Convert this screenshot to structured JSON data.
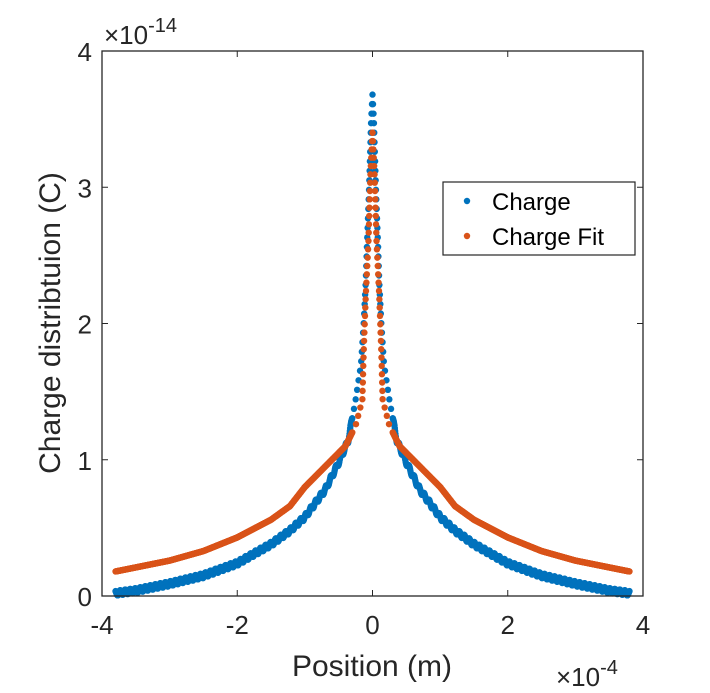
{
  "chart_data": {
    "type": "scatter",
    "title": "",
    "xlabel": "Position (m)",
    "ylabel": "Charge distribtuion (C)",
    "x_exponent_label": "×10",
    "x_exponent": "-4",
    "y_exponent_label": "×10",
    "y_exponent": "-14",
    "xlim": [
      -4,
      4
    ],
    "ylim": [
      0,
      4
    ],
    "xticks": [
      -4,
      -2,
      0,
      2,
      4
    ],
    "xtick_labels": [
      "-4",
      "-2",
      "0",
      "2",
      "4"
    ],
    "yticks": [
      0,
      1,
      2,
      3,
      4
    ],
    "ytick_labels": [
      "0",
      "1",
      "2",
      "3",
      "4"
    ],
    "grid": false,
    "legend_position": "upper-right (inside, below top)",
    "symmetric_about_zero": true,
    "series": [
      {
        "name": "Charge",
        "color": "#0072BD",
        "marker": "dot",
        "x_half": [
          0.0,
          0.02,
          0.05,
          0.08,
          0.1,
          0.13,
          0.17,
          0.25,
          0.36,
          0.5,
          0.7,
          1.0,
          1.22,
          1.5,
          2.0,
          2.5,
          3.0,
          3.5,
          3.8
        ],
        "y_half": [
          3.68,
          3.49,
          3.0,
          2.6,
          2.3,
          2.0,
          1.7,
          1.44,
          1.14,
          0.98,
          0.78,
          0.58,
          0.48,
          0.38,
          0.24,
          0.15,
          0.09,
          0.04,
          0.02
        ]
      },
      {
        "name": "Charge Fit",
        "color": "#D95319",
        "marker": "dot",
        "x_half": [
          0.0,
          0.03,
          0.06,
          0.1,
          0.13,
          0.15,
          0.25,
          0.4,
          0.6,
          0.8,
          1.0,
          1.22,
          1.5,
          2.0,
          2.5,
          3.0,
          3.5,
          3.8
        ],
        "y_half": [
          3.4,
          3.1,
          2.6,
          2.2,
          1.8,
          1.44,
          1.25,
          1.1,
          1.0,
          0.9,
          0.8,
          0.66,
          0.56,
          0.43,
          0.33,
          0.26,
          0.21,
          0.18
        ]
      }
    ]
  }
}
